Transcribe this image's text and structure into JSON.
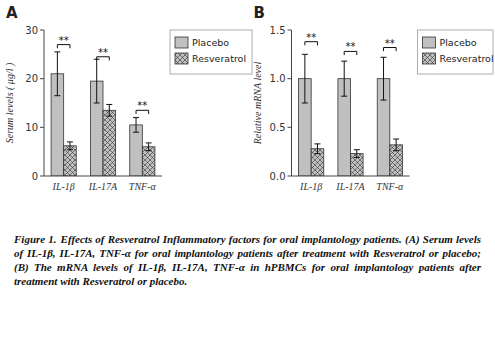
{
  "chart_data": [
    {
      "type": "bar",
      "title": "A",
      "ylabel": "Serum levels ( μg/l )",
      "categories": [
        "IL-1β",
        "IL-17A",
        "TNF-α"
      ],
      "series": [
        {
          "name": "Placebo",
          "color": "#c0c0c0",
          "values": [
            21.0,
            19.5,
            10.5
          ],
          "errors": [
            4.5,
            4.5,
            1.5
          ]
        },
        {
          "name": "Resveratrol",
          "color": "#c0c0c0",
          "values": [
            6.2,
            13.5,
            6.0
          ],
          "errors": [
            0.8,
            1.2,
            0.8
          ]
        }
      ],
      "ylim": [
        0,
        30
      ],
      "yticks": [
        0,
        10,
        20,
        30
      ],
      "grid": false,
      "legend": "right",
      "annotations": [
        {
          "text": "**",
          "category": "IL-1β",
          "y": 27.0
        },
        {
          "text": "**",
          "category": "IL-17A",
          "y": 24.5
        },
        {
          "text": "**",
          "category": "TNF-α",
          "y": 13.5
        }
      ]
    },
    {
      "type": "bar",
      "title": "B",
      "ylabel": "Relative mRNA level",
      "categories": [
        "IL-1β",
        "IL-17A",
        "TNF-α"
      ],
      "series": [
        {
          "name": "Placebo",
          "color": "#c0c0c0",
          "values": [
            1.0,
            1.0,
            1.0
          ],
          "errors": [
            0.25,
            0.18,
            0.22
          ]
        },
        {
          "name": "Resveratrol",
          "color": "#c0c0c0",
          "values": [
            0.28,
            0.23,
            0.32
          ],
          "errors": [
            0.05,
            0.04,
            0.06
          ]
        }
      ],
      "ylim": [
        0.0,
        1.5
      ],
      "yticks": [
        {
          "value": 0,
          "label": "0.0"
        },
        0.5,
        {
          "value": 1,
          "label": "1.0"
        },
        1.5
      ],
      "grid": false,
      "legend": "right",
      "annotations": [
        {
          "text": "**",
          "category": "IL-1β",
          "y": 1.38
        },
        {
          "text": "**",
          "category": "IL-17A",
          "y": 1.28
        },
        {
          "text": "**",
          "category": "TNF-α",
          "y": 1.32
        }
      ]
    }
  ],
  "caption": {
    "bold": "Figure 1.",
    "text": "Effects of Resveratrol Inflammatory factors for oral implantology patients. (A) Serum levels of IL-1β, IL-17A, TNF-α for oral implantology patients after treatment with Resveratrol or placebo; (B) The mRNA levels of IL-1β, IL-17A, TNF-α in hPBMCs for oral implantology patients after treatment with Resveratrol or placebo."
  }
}
